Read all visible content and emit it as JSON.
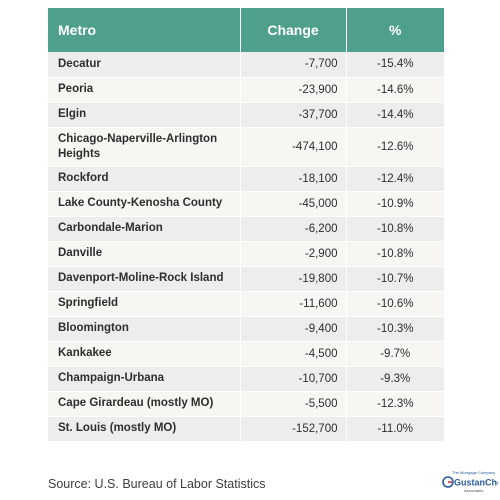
{
  "table": {
    "headers": {
      "metro": "Metro",
      "change": "Change",
      "pct": "%"
    },
    "rows": [
      {
        "metro": "Decatur",
        "change": "-7,700",
        "pct": "-15.4%"
      },
      {
        "metro": "Peoria",
        "change": "-23,900",
        "pct": "-14.6%"
      },
      {
        "metro": "Elgin",
        "change": "-37,700",
        "pct": "-14.4%"
      },
      {
        "metro": "Chicago-Naperville-Arlington Heights",
        "change": "-474,100",
        "pct": "-12.6%"
      },
      {
        "metro": "Rockford",
        "change": "-18,100",
        "pct": "-12.4%"
      },
      {
        "metro": "Lake County-Kenosha County",
        "change": "-45,000",
        "pct": "-10.9%"
      },
      {
        "metro": "Carbondale-Marion",
        "change": "-6,200",
        "pct": "-10.8%"
      },
      {
        "metro": "Danville",
        "change": "-2,900",
        "pct": "-10.8%"
      },
      {
        "metro": "Davenport-Moline-Rock Island",
        "change": "-19,800",
        "pct": "-10.7%"
      },
      {
        "metro": "Springfield",
        "change": "-11,600",
        "pct": "-10.6%"
      },
      {
        "metro": "Bloomington",
        "change": "-9,400",
        "pct": "-10.3%"
      },
      {
        "metro": "Kankakee",
        "change": "-4,500",
        "pct": "-9.7%"
      },
      {
        "metro": "Champaign-Urbana",
        "change": "-10,700",
        "pct": "-9.3%"
      },
      {
        "metro": "Cape Girardeau (mostly MO)",
        "change": "-5,500",
        "pct": "-12.3%"
      },
      {
        "metro": "St. Louis (mostly MO)",
        "change": "-152,700",
        "pct": "-11.0%"
      }
    ]
  },
  "source": "Source: U.S. Bureau of Labor Statistics",
  "logo": {
    "tagline": "The Mortgage Company",
    "name": "GustanCho",
    "sub": "Associates",
    "colors": {
      "primary": "#2a5c9a",
      "accent": "#d23b3b"
    }
  },
  "colors": {
    "header_bg": "#4e9f8b",
    "row_a": "#eeeded",
    "row_b": "#f7f6f3"
  }
}
